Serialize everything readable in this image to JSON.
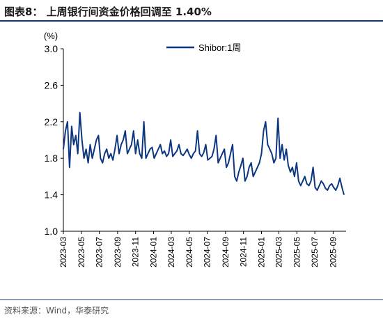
{
  "header": {
    "title": "图表8：  上周银行间资金价格回调至 1.40%"
  },
  "footer": {
    "source": "资料来源：Wind，华泰研究"
  },
  "colors": {
    "line": "#0d3680",
    "title_rule": "#0d3680"
  },
  "chart_data": {
    "type": "line",
    "ylabel": "(%)",
    "ylim": [
      1.0,
      3.0
    ],
    "yticks": [
      "3.0",
      "2.6",
      "2.2",
      "1.8",
      "1.4",
      "1.0"
    ],
    "xlim": [
      "2023-03-01",
      "2025-10-15"
    ],
    "xticks": [
      "2023-03",
      "2023-05",
      "2023-07",
      "2023-09",
      "2023-11",
      "2024-01",
      "2024-03",
      "2024-05",
      "2024-07",
      "2024-09",
      "2024-11",
      "2025-01",
      "2025-03",
      "2025-05",
      "2025-07",
      "2025-09"
    ],
    "legend_position": "top-right",
    "series": [
      {
        "name": "Shibor:1周",
        "points": [
          [
            "2023-03-01",
            1.9
          ],
          [
            "2023-03-08",
            2.1
          ],
          [
            "2023-03-15",
            2.2
          ],
          [
            "2023-03-22",
            1.7
          ],
          [
            "2023-03-29",
            2.15
          ],
          [
            "2023-04-05",
            1.95
          ],
          [
            "2023-04-12",
            2.05
          ],
          [
            "2023-04-19",
            1.85
          ],
          [
            "2023-04-26",
            2.3
          ],
          [
            "2023-05-03",
            2.0
          ],
          [
            "2023-05-10",
            1.8
          ],
          [
            "2023-05-17",
            1.9
          ],
          [
            "2023-05-24",
            1.75
          ],
          [
            "2023-05-31",
            1.95
          ],
          [
            "2023-06-07",
            1.8
          ],
          [
            "2023-06-14",
            1.9
          ],
          [
            "2023-06-21",
            2.0
          ],
          [
            "2023-06-28",
            2.05
          ],
          [
            "2023-07-05",
            1.8
          ],
          [
            "2023-07-12",
            1.75
          ],
          [
            "2023-07-19",
            1.85
          ],
          [
            "2023-07-26",
            1.9
          ],
          [
            "2023-08-02",
            1.8
          ],
          [
            "2023-08-09",
            1.85
          ],
          [
            "2023-08-16",
            1.78
          ],
          [
            "2023-08-23",
            1.9
          ],
          [
            "2023-08-30",
            2.05
          ],
          [
            "2023-09-06",
            1.85
          ],
          [
            "2023-09-13",
            1.95
          ],
          [
            "2023-09-20",
            2.0
          ],
          [
            "2023-09-27",
            2.1
          ],
          [
            "2023-10-04",
            1.85
          ],
          [
            "2023-10-11",
            1.9
          ],
          [
            "2023-10-18",
            1.95
          ],
          [
            "2023-10-25",
            2.1
          ],
          [
            "2023-11-01",
            1.85
          ],
          [
            "2023-11-08",
            2.0
          ],
          [
            "2023-11-15",
            1.85
          ],
          [
            "2023-11-22",
            1.8
          ],
          [
            "2023-11-29",
            2.2
          ],
          [
            "2023-12-06",
            1.8
          ],
          [
            "2023-12-13",
            1.85
          ],
          [
            "2023-12-20",
            1.9
          ],
          [
            "2023-12-27",
            1.92
          ],
          [
            "2024-01-03",
            1.8
          ],
          [
            "2024-01-10",
            1.85
          ],
          [
            "2024-01-17",
            1.9
          ],
          [
            "2024-01-24",
            1.95
          ],
          [
            "2024-01-31",
            1.85
          ],
          [
            "2024-02-07",
            1.88
          ],
          [
            "2024-02-14",
            1.82
          ],
          [
            "2024-02-21",
            1.85
          ],
          [
            "2024-02-28",
            2.0
          ],
          [
            "2024-03-06",
            1.82
          ],
          [
            "2024-03-13",
            1.85
          ],
          [
            "2024-03-20",
            1.88
          ],
          [
            "2024-03-27",
            1.95
          ],
          [
            "2024-04-03",
            1.85
          ],
          [
            "2024-04-10",
            1.83
          ],
          [
            "2024-04-17",
            1.86
          ],
          [
            "2024-04-24",
            1.9
          ],
          [
            "2024-05-01",
            1.84
          ],
          [
            "2024-05-08",
            1.8
          ],
          [
            "2024-05-15",
            1.85
          ],
          [
            "2024-05-22",
            1.88
          ],
          [
            "2024-05-29",
            2.1
          ],
          [
            "2024-06-05",
            1.85
          ],
          [
            "2024-06-12",
            1.82
          ],
          [
            "2024-06-19",
            1.86
          ],
          [
            "2024-06-26",
            1.95
          ],
          [
            "2024-07-03",
            1.78
          ],
          [
            "2024-07-10",
            1.8
          ],
          [
            "2024-07-17",
            1.82
          ],
          [
            "2024-07-24",
            1.9
          ],
          [
            "2024-07-31",
            2.05
          ],
          [
            "2024-08-07",
            1.75
          ],
          [
            "2024-08-14",
            1.8
          ],
          [
            "2024-08-21",
            1.85
          ],
          [
            "2024-08-28",
            1.9
          ],
          [
            "2024-09-04",
            1.7
          ],
          [
            "2024-09-11",
            1.75
          ],
          [
            "2024-09-18",
            1.85
          ],
          [
            "2024-09-25",
            1.95
          ],
          [
            "2024-10-02",
            1.6
          ],
          [
            "2024-10-09",
            1.55
          ],
          [
            "2024-10-16",
            1.65
          ],
          [
            "2024-10-23",
            1.72
          ],
          [
            "2024-10-30",
            1.8
          ],
          [
            "2024-11-06",
            1.55
          ],
          [
            "2024-11-13",
            1.6
          ],
          [
            "2024-11-20",
            1.7
          ],
          [
            "2024-11-27",
            1.75
          ],
          [
            "2024-12-04",
            1.6
          ],
          [
            "2024-12-11",
            1.65
          ],
          [
            "2024-12-18",
            1.7
          ],
          [
            "2024-12-25",
            1.75
          ],
          [
            "2025-01-01",
            1.85
          ],
          [
            "2025-01-08",
            2.1
          ],
          [
            "2025-01-15",
            2.2
          ],
          [
            "2025-01-22",
            1.95
          ],
          [
            "2025-01-29",
            1.9
          ],
          [
            "2025-02-05",
            1.85
          ],
          [
            "2025-02-12",
            1.75
          ],
          [
            "2025-02-19",
            1.8
          ],
          [
            "2025-02-26",
            2.24
          ],
          [
            "2025-03-05",
            1.8
          ],
          [
            "2025-03-12",
            1.95
          ],
          [
            "2025-03-19",
            1.78
          ],
          [
            "2025-03-26",
            1.9
          ],
          [
            "2025-04-02",
            1.72
          ],
          [
            "2025-04-09",
            1.65
          ],
          [
            "2025-04-16",
            1.7
          ],
          [
            "2025-04-23",
            1.6
          ],
          [
            "2025-04-30",
            1.75
          ],
          [
            "2025-05-07",
            1.55
          ],
          [
            "2025-05-14",
            1.5
          ],
          [
            "2025-05-21",
            1.55
          ],
          [
            "2025-05-28",
            1.6
          ],
          [
            "2025-06-04",
            1.52
          ],
          [
            "2025-06-11",
            1.5
          ],
          [
            "2025-06-18",
            1.55
          ],
          [
            "2025-06-25",
            1.7
          ],
          [
            "2025-07-02",
            1.48
          ],
          [
            "2025-07-09",
            1.45
          ],
          [
            "2025-07-16",
            1.5
          ],
          [
            "2025-07-23",
            1.55
          ],
          [
            "2025-07-30",
            1.52
          ],
          [
            "2025-08-06",
            1.47
          ],
          [
            "2025-08-13",
            1.45
          ],
          [
            "2025-08-20",
            1.5
          ],
          [
            "2025-08-27",
            1.52
          ],
          [
            "2025-09-03",
            1.48
          ],
          [
            "2025-09-10",
            1.45
          ],
          [
            "2025-09-17",
            1.5
          ],
          [
            "2025-09-24",
            1.58
          ],
          [
            "2025-10-01",
            1.48
          ],
          [
            "2025-10-08",
            1.4
          ]
        ]
      }
    ]
  }
}
